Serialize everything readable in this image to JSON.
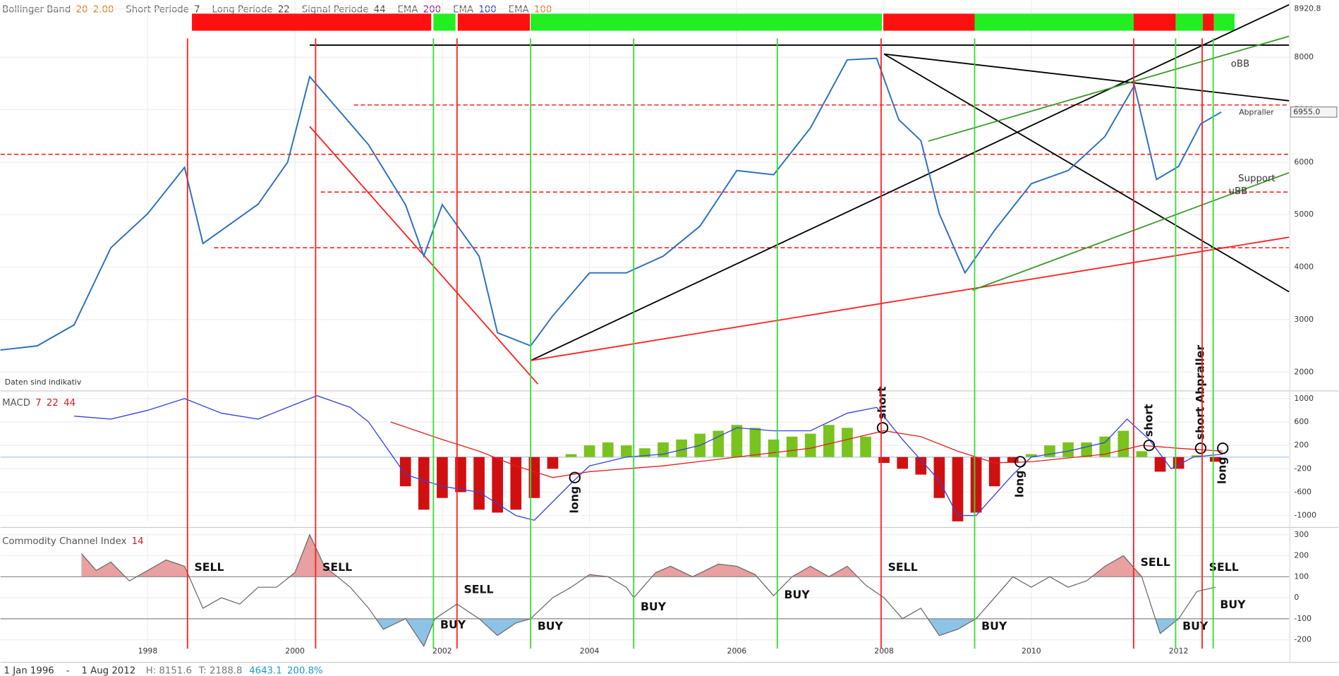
{
  "header": {
    "legend": [
      {
        "name": "Bollinger Band",
        "params": [
          {
            "text": "20",
            "color": "#e07a1f"
          },
          {
            "text": "2.00",
            "color": "#e07a1f"
          }
        ]
      },
      {
        "name": "Short Periode",
        "params": [
          {
            "text": "7",
            "color": "#444"
          }
        ]
      },
      {
        "name": "Long Periode",
        "params": [
          {
            "text": "22",
            "color": "#444"
          }
        ]
      },
      {
        "name": "Signal Periode",
        "params": [
          {
            "text": "44",
            "color": "#444"
          }
        ]
      },
      {
        "name": "EMA",
        "params": [
          {
            "text": "200",
            "color": "#8b1a9b"
          }
        ]
      },
      {
        "name": "EMA",
        "params": [
          {
            "text": "100",
            "color": "#2244cc"
          }
        ]
      },
      {
        "name": "EMA",
        "params": [
          {
            "text": "100",
            "color": "#e07a1f"
          }
        ]
      }
    ]
  },
  "chart_data": [
    {
      "type": "line",
      "note": "Daten sind indikativ",
      "x": [
        1996.0,
        1996.5,
        1997.0,
        1997.5,
        1998.0,
        1998.5,
        1998.75,
        1999.0,
        1999.5,
        1999.9,
        2000.2,
        2000.6,
        2001.0,
        2001.5,
        2001.75,
        2002.0,
        2002.5,
        2002.75,
        2003.2,
        2003.5,
        2004.0,
        2004.5,
        2005.0,
        2005.5,
        2006.0,
        2006.5,
        2007.0,
        2007.5,
        2007.9,
        2008.2,
        2008.5,
        2008.75,
        2009.1,
        2009.5,
        2010.0,
        2010.5,
        2011.0,
        2011.4,
        2011.7,
        2012.0,
        2012.3,
        2012.58
      ],
      "series": [
        {
          "color": "#2a6fbf",
          "values": [
            2420,
            2500,
            2900,
            4370,
            5020,
            5900,
            4450,
            4700,
            5200,
            6000,
            7630,
            6980,
            6330,
            5190,
            4210,
            5190,
            4210,
            2750,
            2500,
            3070,
            3890,
            3890,
            4210,
            4780,
            5840,
            5760,
            6650,
            7950,
            7980,
            6810,
            6410,
            5020,
            3890,
            4700,
            5590,
            5840,
            6490,
            7460,
            5670,
            5920,
            6730,
            6955
          ]
        }
      ],
      "xlim": [
        1996,
        2013.5
      ],
      "xticks": [
        1998,
        2000,
        2002,
        2004,
        2006,
        2008,
        2010,
        2012
      ],
      "ylim": [
        1690,
        9090
      ],
      "yticks": [
        2000,
        3000,
        4000,
        5000,
        6000,
        7000,
        8000,
        8920.8
      ],
      "last_value": {
        "value": 6955,
        "label": "6955.0"
      },
      "levels": [
        {
          "value": 7090,
          "from": 2000.8,
          "color": "#ff2020"
        },
        {
          "value": 6150,
          "from": 1996.0,
          "color": "#ff2020"
        },
        {
          "value": 5430,
          "from": 2000.35,
          "color": "#ff2020"
        },
        {
          "value": 4370,
          "from": 1998.9,
          "color": "#ff2020"
        }
      ],
      "trendlines": [
        {
          "from": [
            2003.2,
            2220
          ],
          "to": [
            2013.5,
            9000
          ],
          "color": "#000"
        },
        {
          "from": [
            2003.2,
            2220
          ],
          "to": [
            2013.5,
            4570
          ],
          "color": "#ff2020"
        },
        {
          "from": [
            2000.2,
            6680
          ],
          "to": [
            2003.3,
            1770
          ],
          "color": "#ff2020"
        },
        {
          "from": [
            2008.0,
            8060
          ],
          "to": [
            2013.5,
            3530
          ],
          "color": "#000"
        },
        {
          "from": [
            2008.0,
            8060
          ],
          "to": [
            2013.5,
            7170
          ],
          "color": "#000"
        },
        {
          "from": [
            2000.2,
            8230
          ],
          "to": [
            2013.5,
            8230
          ],
          "color": "#000"
        },
        {
          "from": [
            2009.2,
            3560
          ],
          "to": [
            2013.5,
            5800
          ],
          "color": "#3a9a2a"
        },
        {
          "from": [
            2008.6,
            6400
          ],
          "to": [
            2013.5,
            8400
          ],
          "color": "#3a9a2a"
        }
      ],
      "regimes": [
        {
          "start": 1998.6,
          "end": 2001.85,
          "color": "#ff1010"
        },
        {
          "start": 2001.88,
          "end": 2002.18,
          "color": "#22ee22"
        },
        {
          "start": 2002.21,
          "end": 2003.19,
          "color": "#ff1010"
        },
        {
          "start": 2003.2,
          "end": 2007.97,
          "color": "#22ee22"
        },
        {
          "start": 2007.99,
          "end": 2009.23,
          "color": "#ff1010"
        },
        {
          "start": 2009.23,
          "end": 2011.39,
          "color": "#22ee22"
        },
        {
          "start": 2011.39,
          "end": 2011.96,
          "color": "#ff1010"
        },
        {
          "start": 2011.96,
          "end": 2012.33,
          "color": "#22ee22"
        },
        {
          "start": 2012.33,
          "end": 2012.48,
          "color": "#ff1010"
        },
        {
          "start": 2012.48,
          "end": 2012.76,
          "color": "#22ee22"
        }
      ],
      "annotations": [
        {
          "text": "oBB",
          "x": 2012.71,
          "y": 7870,
          "color": "#111"
        },
        {
          "text": "Support",
          "x": 2012.81,
          "y": 5690,
          "color": "#111"
        },
        {
          "text": "uBB",
          "x": 2012.68,
          "y": 5447,
          "color": "#111"
        },
        {
          "text": "Abpraller",
          "x": 2012.82,
          "y": 6943,
          "color": "#e02020"
        }
      ]
    },
    {
      "type": "bar",
      "title": "MACD",
      "params": [
        "7",
        "22",
        "44"
      ],
      "x": [
        2001.5,
        2001.75,
        2002.0,
        2002.25,
        2002.5,
        2002.75,
        2003.0,
        2003.25,
        2003.5,
        2003.75,
        2004.0,
        2004.25,
        2004.5,
        2004.75,
        2005.0,
        2005.25,
        2005.5,
        2005.75,
        2006.0,
        2006.25,
        2006.5,
        2006.75,
        2007.0,
        2007.25,
        2007.5,
        2007.75,
        2008.0,
        2008.25,
        2008.5,
        2008.75,
        2009.0,
        2009.25,
        2009.5,
        2009.75,
        2010.0,
        2010.25,
        2010.5,
        2010.75,
        2011.0,
        2011.25,
        2011.5,
        2011.75,
        2012.0,
        2012.25,
        2012.5
      ],
      "values": [
        -500,
        -900,
        -700,
        -600,
        -900,
        -950,
        -900,
        -700,
        -200,
        50,
        200,
        250,
        200,
        150,
        250,
        300,
        400,
        450,
        550,
        500,
        300,
        350,
        400,
        550,
        500,
        350,
        -100,
        -200,
        -300,
        -700,
        -1100,
        -950,
        -500,
        -100,
        50,
        200,
        250,
        250,
        350,
        450,
        100,
        -250,
        -200,
        30,
        -80
      ],
      "positive_color": "#7ac21e",
      "negative_color": "#d01010",
      "lines": [
        {
          "color": "#3344dd",
          "x": [
            1997.0,
            1997.5,
            1998.0,
            1998.5,
            1999.0,
            1999.5,
            2000.0,
            2000.3,
            2000.75,
            2001.0,
            2001.5,
            2002.0,
            2002.5,
            2003.0,
            2003.25,
            2003.75,
            2004.0,
            2004.5,
            2005.0,
            2005.5,
            2006.0,
            2006.5,
            2007.0,
            2007.5,
            2007.9,
            2008.25,
            2008.75,
            2009.0,
            2009.25,
            2009.75,
            2010.0,
            2010.5,
            2011.0,
            2011.3,
            2011.6,
            2011.9,
            2012.2,
            2012.6
          ],
          "values": [
            700,
            650,
            800,
            1000,
            750,
            650,
            900,
            1050,
            850,
            600,
            -300,
            -500,
            -600,
            -1000,
            -1080,
            -450,
            -150,
            0,
            50,
            200,
            500,
            450,
            450,
            750,
            850,
            300,
            -400,
            -1000,
            -1000,
            -300,
            0,
            100,
            250,
            650,
            300,
            -200,
            0,
            50
          ]
        },
        {
          "color": "#e02020",
          "x": [
            2001.3,
            2002.0,
            2002.5,
            2003.0,
            2003.5,
            2004.0,
            2005.0,
            2006.0,
            2007.0,
            2008.0,
            2008.5,
            2009.0,
            2009.5,
            2010.0,
            2011.0,
            2011.5,
            2012.0,
            2012.6
          ],
          "values": [
            600,
            300,
            100,
            -150,
            -350,
            -250,
            -150,
            0,
            150,
            450,
            350,
            100,
            -100,
            -80,
            50,
            200,
            150,
            100
          ]
        }
      ],
      "xlim": [
        1996,
        2013.5
      ],
      "xticks": [
        1998,
        2000,
        2002,
        2004,
        2006,
        2008,
        2010,
        2012
      ],
      "ylim": [
        -1117,
        1073
      ],
      "yticks": [
        -1000,
        -600,
        -200,
        200,
        600,
        1000
      ],
      "annotations": [
        {
          "text": "long",
          "x": 2003.8,
          "y": -350,
          "side": "below"
        },
        {
          "text": "short",
          "x": 2007.98,
          "y": 500,
          "side": "above"
        },
        {
          "text": "long",
          "x": 2009.85,
          "y": -80,
          "side": "below"
        },
        {
          "text": "short",
          "x": 2011.6,
          "y": 200,
          "side": "above"
        },
        {
          "text": "short Abpraller",
          "x": 2012.3,
          "y": 150,
          "side": "above"
        },
        {
          "text": "long",
          "x": 2012.6,
          "y": 150,
          "side": "below"
        }
      ]
    },
    {
      "type": "area",
      "title": "Commodity Channel Index",
      "params": [
        "14"
      ],
      "x": [
        1997.1,
        1997.3,
        1997.5,
        1997.75,
        1998.0,
        1998.25,
        1998.5,
        1998.75,
        1999.0,
        1999.25,
        1999.5,
        1999.75,
        2000.0,
        2000.2,
        2000.4,
        2000.75,
        2001.0,
        2001.2,
        2001.5,
        2001.75,
        2001.9,
        2002.2,
        2002.5,
        2002.75,
        2003.0,
        2003.2,
        2003.5,
        2003.75,
        2004.0,
        2004.25,
        2004.5,
        2004.6,
        2004.9,
        2005.1,
        2005.4,
        2005.75,
        2006.0,
        2006.25,
        2006.5,
        2006.75,
        2007.0,
        2007.25,
        2007.5,
        2007.75,
        2008.0,
        2008.25,
        2008.5,
        2008.75,
        2009.0,
        2009.25,
        2009.5,
        2009.75,
        2010.0,
        2010.25,
        2010.5,
        2010.75,
        2011.0,
        2011.25,
        2011.5,
        2011.75,
        2012.0,
        2012.25,
        2012.5
      ],
      "values": [
        210,
        130,
        170,
        80,
        130,
        180,
        150,
        -50,
        0,
        -30,
        50,
        50,
        120,
        300,
        150,
        50,
        -50,
        -150,
        -100,
        -230,
        -100,
        -30,
        -100,
        -180,
        -120,
        -100,
        0,
        50,
        110,
        100,
        50,
        0,
        120,
        150,
        100,
        160,
        150,
        110,
        10,
        100,
        150,
        100,
        150,
        60,
        0,
        -100,
        -50,
        -180,
        -150,
        -100,
        0,
        100,
        50,
        100,
        50,
        80,
        150,
        200,
        100,
        -170,
        -100,
        30,
        50
      ],
      "color": "#666",
      "overbought": {
        "value": 100,
        "color": "#e8a0a0"
      },
      "oversold": {
        "value": -100,
        "color": "#8ec3e8"
      },
      "xlim": [
        1996,
        2013.5
      ],
      "xticks": [
        1998,
        2000,
        2002,
        2004,
        2006,
        2008,
        2010,
        2012
      ],
      "ylim": [
        -283,
        310
      ],
      "yticks": [
        -200,
        -100,
        0,
        100,
        200,
        300
      ],
      "signals": [
        {
          "x": 1998.54,
          "label": "SELL",
          "y": 143,
          "color": "#ff2020"
        },
        {
          "x": 2000.28,
          "label": "SELL",
          "y": 143,
          "color": "#ff2020"
        },
        {
          "x": 2001.88,
          "label": "BUY",
          "y": -130,
          "color": "#33dd33"
        },
        {
          "x": 2002.2,
          "label": "SELL",
          "y": 37,
          "color": "#ff2020"
        },
        {
          "x": 2003.2,
          "label": "BUY",
          "y": -138,
          "color": "#33dd33"
        },
        {
          "x": 2004.6,
          "label": "BUY",
          "y": -45,
          "color": "#33dd33"
        },
        {
          "x": 2006.55,
          "label": "BUY",
          "y": 12,
          "color": "#33dd33"
        },
        {
          "x": 2007.96,
          "label": "SELL",
          "y": 143,
          "color": "#ff2020"
        },
        {
          "x": 2009.23,
          "label": "BUY",
          "y": -138,
          "color": "#33dd33"
        },
        {
          "x": 2011.39,
          "label": "SELL",
          "y": 167,
          "color": "#ff2020"
        },
        {
          "x": 2011.96,
          "label": "BUY",
          "y": -138,
          "color": "#33dd33"
        },
        {
          "x": 2012.32,
          "label": "SELL",
          "y": 143,
          "color": "#ff2020"
        },
        {
          "x": 2012.47,
          "label": "BUY",
          "y": -35,
          "color": "#33dd33"
        }
      ]
    }
  ],
  "footer": {
    "start": "1 Jan 1996",
    "sep": "-",
    "end": "1 Aug 2012",
    "high": "H: 8151.6",
    "low": "T: 2188.8",
    "change": "4643.1",
    "change_pct": "200.8%"
  }
}
